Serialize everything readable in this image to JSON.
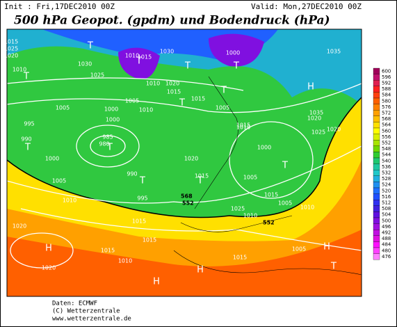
{
  "header": {
    "init": "Init : Fri,17DEC2010 00Z",
    "valid": "Valid: Mon,27DEC2010 00Z",
    "title": "500 hPa Geopot. (gpdm) und Bodendruck (hPa)"
  },
  "colorbar": {
    "levels": [
      600,
      596,
      592,
      588,
      584,
      580,
      576,
      572,
      568,
      564,
      560,
      556,
      552,
      548,
      544,
      540,
      536,
      532,
      528,
      524,
      520,
      516,
      512,
      508,
      504,
      500,
      496,
      492,
      488,
      484,
      480,
      476
    ],
    "colors": [
      "#a0005a",
      "#c0106e",
      "#e02050",
      "#ff2020",
      "#ff4010",
      "#ff6000",
      "#ff8000",
      "#ffa000",
      "#ffc000",
      "#ffe000",
      "#ffff00",
      "#d8f000",
      "#a8e400",
      "#70d800",
      "#30cc30",
      "#20c870",
      "#20c8a0",
      "#20c8c8",
      "#20b0e0",
      "#2090f0",
      "#2070ff",
      "#2050ff",
      "#3030f0",
      "#4020e0",
      "#6010e0",
      "#8010e0",
      "#a010e0",
      "#c010e0",
      "#e010e0",
      "#ff10ff",
      "#ff40ff",
      "#ff80ff"
    ]
  },
  "map": {
    "isobar_labels": [
      "1015",
      "1025",
      "1020",
      "1010",
      "1030",
      "1025",
      "1010",
      "1015",
      "1030",
      "1000",
      "1035",
      "1010",
      "1015",
      "1005",
      "1000",
      "1005",
      "1015",
      "1000",
      "1010",
      "1020",
      "1005",
      "1015",
      "1020",
      "1025",
      "1035",
      "995",
      "990",
      "985",
      "980",
      "1000",
      "990",
      "995",
      "1005",
      "1010",
      "1020",
      "1015",
      "1000",
      "1005",
      "1010",
      "1010",
      "1020",
      "1015",
      "1025",
      "1015",
      "1005",
      "1005",
      "1020",
      "1020",
      "1010",
      "1010",
      "1015",
      "1015",
      "1015"
    ],
    "contour_labels": [
      "568",
      "552",
      "552"
    ],
    "centers": [
      "T",
      "T",
      "T",
      "T",
      "T",
      "T",
      "H",
      "T",
      "T",
      "T",
      "T",
      "T",
      "H",
      "H",
      "H",
      "H",
      "T",
      "T"
    ]
  },
  "footer": {
    "source": "Daten: ECMWF",
    "copyright": "(C) Wetterzentrale",
    "url": "www.wetterzentrale.de"
  }
}
